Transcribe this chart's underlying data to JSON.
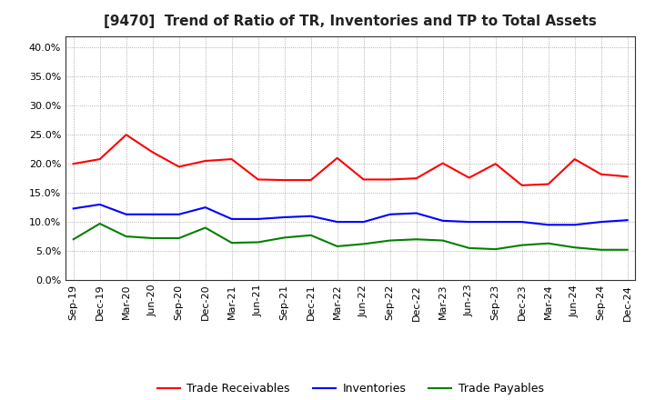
{
  "title": "[9470]  Trend of Ratio of TR, Inventories and TP to Total Assets",
  "x_labels": [
    "Sep-19",
    "Dec-19",
    "Mar-20",
    "Jun-20",
    "Sep-20",
    "Dec-20",
    "Mar-21",
    "Jun-21",
    "Sep-21",
    "Dec-21",
    "Mar-22",
    "Jun-22",
    "Sep-22",
    "Dec-22",
    "Mar-23",
    "Jun-23",
    "Sep-23",
    "Dec-23",
    "Mar-24",
    "Jun-24",
    "Sep-24",
    "Dec-24"
  ],
  "trade_receivables": [
    0.2,
    0.208,
    0.25,
    0.22,
    0.195,
    0.205,
    0.208,
    0.173,
    0.172,
    0.172,
    0.21,
    0.173,
    0.173,
    0.175,
    0.201,
    0.176,
    0.2,
    0.163,
    0.165,
    0.208,
    0.182,
    0.178
  ],
  "inventories": [
    0.123,
    0.13,
    0.113,
    0.113,
    0.113,
    0.125,
    0.105,
    0.105,
    0.108,
    0.11,
    0.1,
    0.1,
    0.113,
    0.115,
    0.102,
    0.1,
    0.1,
    0.1,
    0.095,
    0.095,
    0.1,
    0.103
  ],
  "trade_payables": [
    0.07,
    0.097,
    0.075,
    0.072,
    0.072,
    0.09,
    0.064,
    0.065,
    0.073,
    0.077,
    0.058,
    0.062,
    0.068,
    0.07,
    0.068,
    0.055,
    0.053,
    0.06,
    0.063,
    0.056,
    0.052,
    0.052
  ],
  "tr_color": "#FF0000",
  "inv_color": "#0000FF",
  "tp_color": "#008000",
  "ylim": [
    0.0,
    0.42
  ],
  "yticks": [
    0.0,
    0.05,
    0.1,
    0.15,
    0.2,
    0.25,
    0.3,
    0.35,
    0.4
  ],
  "background_color": "#FFFFFF",
  "grid_color": "#999999",
  "legend_tr": "Trade Receivables",
  "legend_inv": "Inventories",
  "legend_tp": "Trade Payables",
  "title_fontsize": 11,
  "tick_fontsize": 8,
  "legend_fontsize": 9,
  "linewidth": 1.5
}
